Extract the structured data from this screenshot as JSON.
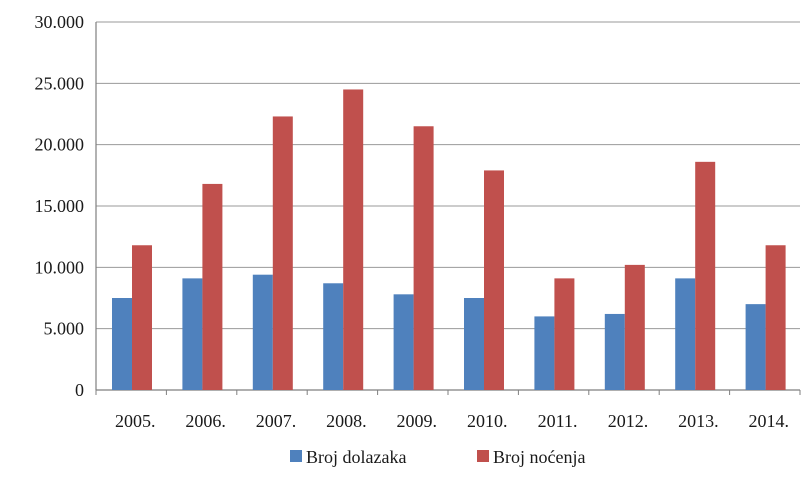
{
  "chart_data": {
    "type": "bar",
    "categories": [
      "2005.",
      "2006.",
      "2007.",
      "2008.",
      "2009.",
      "2010.",
      "2011.",
      "2012.",
      "2013.",
      "2014."
    ],
    "series": [
      {
        "name": "Broj dolazaka",
        "color": "#4f81bd",
        "values": [
          7500,
          9100,
          9400,
          8700,
          7800,
          7500,
          6000,
          6200,
          9100,
          7000
        ]
      },
      {
        "name": "Broj noćenja",
        "color": "#c0504d",
        "values": [
          11800,
          16800,
          22300,
          24500,
          21500,
          17900,
          9100,
          10200,
          18600,
          11800
        ]
      }
    ],
    "ylim": [
      0,
      30000
    ],
    "yticks": [
      {
        "value": 0,
        "label": "0"
      },
      {
        "value": 5000,
        "label": "5.000"
      },
      {
        "value": 10000,
        "label": "10.000"
      },
      {
        "value": 15000,
        "label": "15.000"
      },
      {
        "value": 20000,
        "label": "20.000"
      },
      {
        "value": 25000,
        "label": "25.000"
      },
      {
        "value": 30000,
        "label": "30.000"
      }
    ],
    "grid": true,
    "legend": "bottom"
  }
}
